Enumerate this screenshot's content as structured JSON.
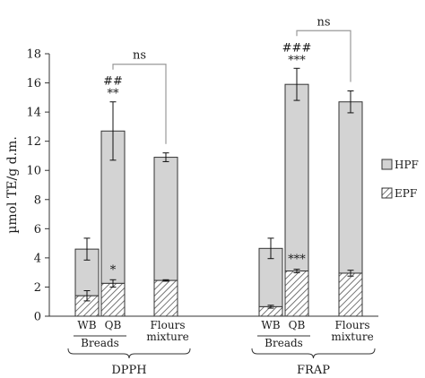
{
  "chart_data": {
    "type": "bar",
    "stacked": true,
    "ylabel": "µmol TE/g d.m.",
    "ylim": [
      0,
      18
    ],
    "yticks": [
      0,
      2,
      4,
      6,
      8,
      10,
      12,
      14,
      16,
      18
    ],
    "grid": false,
    "legend_position": "right",
    "legend": [
      {
        "key": "HPF",
        "label": "HPF",
        "fill": "#d3d3d3"
      },
      {
        "key": "EPF",
        "label": "EPF",
        "fill": "hatched"
      }
    ],
    "colors": {
      "hpf": "#d3d3d3",
      "epf_bg": "#ffffff",
      "hatch": "#555555",
      "stroke": "#333333",
      "bracket": "#999999"
    },
    "methods": [
      {
        "name": "DPPH",
        "bread_group_label": "Breads"
      },
      {
        "name": "FRAP",
        "bread_group_label": "Breads"
      }
    ],
    "bars": [
      {
        "method": "DPPH",
        "label": "WB",
        "epf": 1.4,
        "epf_err": 0.35,
        "total": 4.6,
        "total_err": 0.75,
        "total_sig": [],
        "epf_sig": []
      },
      {
        "method": "DPPH",
        "label": "QB",
        "epf": 2.25,
        "epf_err": 0.25,
        "total": 12.7,
        "total_err": 2.0,
        "total_sig": [
          "**",
          "##"
        ],
        "epf_sig": [
          "*"
        ]
      },
      {
        "method": "DPPH",
        "label": "Flours mixture",
        "label_lines": [
          "Flours",
          "mixture"
        ],
        "epf": 2.45,
        "epf_err": 0.05,
        "total": 10.9,
        "total_err": 0.3,
        "total_sig": [],
        "epf_sig": []
      },
      {
        "method": "FRAP",
        "label": "WB",
        "epf": 0.65,
        "epf_err": 0.1,
        "total": 4.65,
        "total_err": 0.7,
        "total_sig": [],
        "epf_sig": []
      },
      {
        "method": "FRAP",
        "label": "QB",
        "epf": 3.1,
        "epf_err": 0.12,
        "total": 15.9,
        "total_err": 1.1,
        "total_sig": [
          "***",
          "###"
        ],
        "epf_sig": [
          "***"
        ]
      },
      {
        "method": "FRAP",
        "label": "Flours mixture",
        "label_lines": [
          "Flours",
          "mixture"
        ],
        "epf": 2.95,
        "epf_err": 0.2,
        "total": 14.7,
        "total_err": 0.75,
        "total_sig": [],
        "epf_sig": []
      }
    ],
    "comparisons": [
      {
        "method": "DPPH",
        "between": [
          "QB",
          "Flours mixture"
        ],
        "label": "ns"
      },
      {
        "method": "FRAP",
        "between": [
          "QB",
          "Flours mixture"
        ],
        "label": "ns"
      }
    ]
  }
}
